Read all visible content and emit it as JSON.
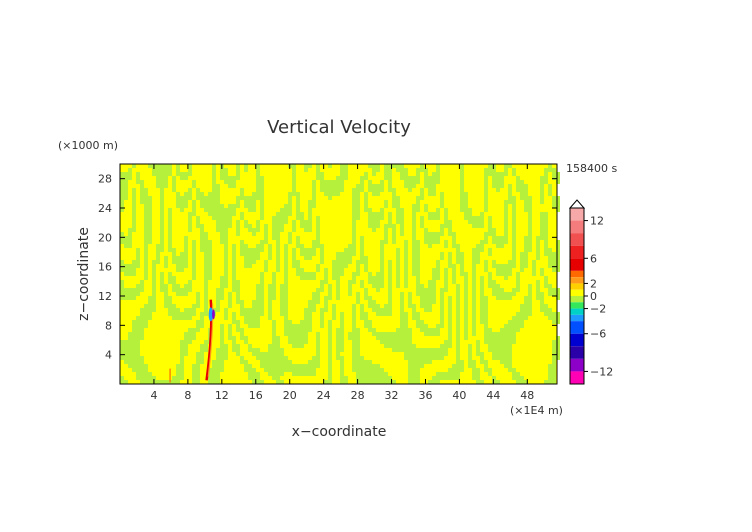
{
  "chart_data": {
    "type": "heatmap",
    "title": "Vertical Velocity",
    "xlabel": "x−coordinate",
    "ylabel": "z−coordinate",
    "x_unit": "(×1E4 m)",
    "y_unit": "(×1000 m)",
    "time_label": "158400 s",
    "xlim": [
      0,
      51.5
    ],
    "ylim": [
      0,
      30
    ],
    "x_ticks": [
      "4",
      "8",
      "12",
      "16",
      "20",
      "24",
      "28",
      "32",
      "36",
      "40",
      "44",
      "48"
    ],
    "x_tick_values": [
      4,
      8,
      12,
      16,
      20,
      24,
      28,
      32,
      36,
      40,
      44,
      48
    ],
    "y_ticks": [
      "4",
      "8",
      "12",
      "16",
      "20",
      "24",
      "28"
    ],
    "y_tick_values": [
      4,
      8,
      12,
      16,
      20,
      24,
      28
    ],
    "colorbar": {
      "labels": [
        "12",
        "6",
        "2",
        "0",
        "−2",
        "−6",
        "−12"
      ],
      "label_values": [
        12,
        6,
        2,
        0,
        -2,
        -6,
        -12
      ],
      "range": [
        -14,
        14
      ],
      "bands": [
        {
          "from": 12,
          "to": 14,
          "color": "#f7a8a8"
        },
        {
          "from": 10,
          "to": 12,
          "color": "#f47c7c"
        },
        {
          "from": 8,
          "to": 10,
          "color": "#f05050"
        },
        {
          "from": 6,
          "to": 8,
          "color": "#ee2020"
        },
        {
          "from": 4,
          "to": 6,
          "color": "#e60000"
        },
        {
          "from": 3,
          "to": 4,
          "color": "#ff6a00"
        },
        {
          "from": 2,
          "to": 3,
          "color": "#ff9a1a"
        },
        {
          "from": 1,
          "to": 2,
          "color": "#ffd000"
        },
        {
          "from": 0,
          "to": 1,
          "color": "#ffff00"
        },
        {
          "from": -1,
          "to": 0,
          "color": "#b4f03c"
        },
        {
          "from": -2,
          "to": -1,
          "color": "#33e85a"
        },
        {
          "from": -3,
          "to": -2,
          "color": "#00d2c8"
        },
        {
          "from": -4,
          "to": -3,
          "color": "#1e9bff"
        },
        {
          "from": -6,
          "to": -4,
          "color": "#0050ff"
        },
        {
          "from": -8,
          "to": -6,
          "color": "#0000d0"
        },
        {
          "from": -10,
          "to": -8,
          "color": "#2a00a8"
        },
        {
          "from": -12,
          "to": -10,
          "color": "#8c00c8"
        },
        {
          "from": -14,
          "to": -12,
          "color": "#ff00b4"
        }
      ]
    },
    "field_colors": {
      "positive_small": "#ffff00",
      "negative_small": "#b4f03c"
    },
    "features": [
      {
        "name": "updraft plume",
        "x": [
          10.2,
          11.0
        ],
        "z": [
          0.5,
          11.5
        ],
        "max_value": 12
      },
      {
        "name": "downdraft core",
        "x": [
          10.5,
          10.9
        ],
        "z": [
          8.5,
          10.5
        ],
        "min_value": -4
      }
    ]
  }
}
